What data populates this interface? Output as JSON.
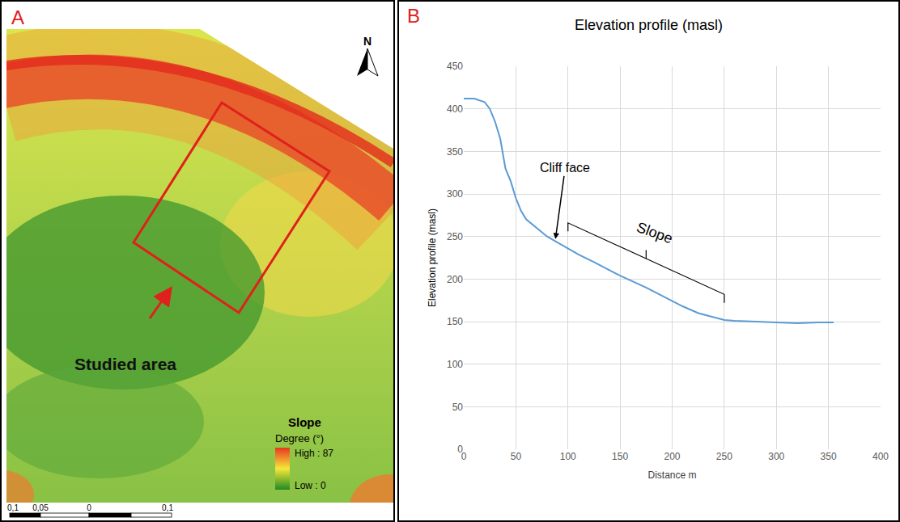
{
  "chart_data": {
    "type": "line",
    "panel": "B",
    "title": "Elevation profile (masl)",
    "x_label": "Distance m",
    "y_label": "Elevation profile (masl)",
    "x": [
      0,
      10,
      20,
      25,
      30,
      35,
      40,
      45,
      50,
      55,
      60,
      70,
      80,
      90,
      100,
      110,
      125,
      140,
      150,
      175,
      200,
      210,
      225,
      240,
      250,
      260,
      275,
      300,
      320,
      340,
      355
    ],
    "series": [
      {
        "color": "#5b9bd5",
        "values": [
          412,
          412,
          408,
          400,
          385,
          365,
          330,
          315,
          295,
          280,
          270,
          260,
          250,
          243,
          236,
          229,
          220,
          210,
          204,
          190,
          174,
          168,
          160,
          155,
          152,
          151,
          150,
          149,
          148,
          149,
          149
        ]
      }
    ],
    "xlim": [
      0,
      400
    ],
    "xticks": [
      0,
      50,
      100,
      150,
      200,
      250,
      300,
      350,
      400
    ],
    "ylim": [
      0,
      450
    ],
    "yticks": [
      0,
      50,
      100,
      150,
      200,
      250,
      300,
      350,
      400,
      450
    ],
    "grid": true,
    "annotations": [
      {
        "text": "Cliff face",
        "x": 88,
        "y": 247
      },
      {
        "text": "Slope",
        "x0": 100,
        "x1": 250
      }
    ]
  },
  "map": {
    "panel": "A",
    "north": "N",
    "label": "Studied area",
    "legend": {
      "title": "Slope",
      "subtitle": "Degree (°)",
      "high": "High : 87",
      "low": "Low : 0"
    },
    "scale_labels": [
      "0,1",
      "0,05",
      "0",
      "0,1"
    ]
  }
}
